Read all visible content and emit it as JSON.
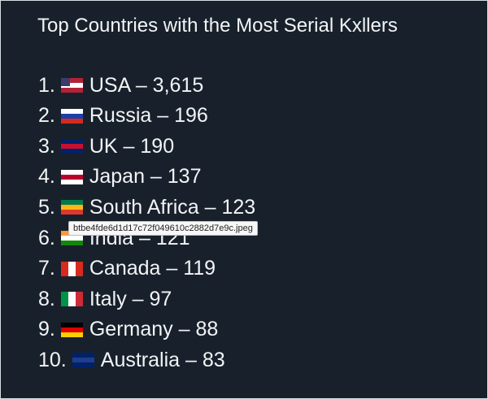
{
  "header": {
    "title": "Top Countries with the Most Serial Kxllers"
  },
  "list": [
    {
      "rank": "1.",
      "text": "USA – 3,615"
    },
    {
      "rank": "2.",
      "text": "Russia – 196"
    },
    {
      "rank": "3.",
      "text": "UK – 190"
    },
    {
      "rank": "4.",
      "text": "Japan – 137"
    },
    {
      "rank": "5.",
      "text": "South Africa – 123"
    },
    {
      "rank": "6.",
      "text": "India – 121"
    },
    {
      "rank": "7.",
      "text": "Canada – 119"
    },
    {
      "rank": "8.",
      "text": "Italy – 97"
    },
    {
      "rank": "9.",
      "text": "Germany – 88"
    },
    {
      "rank": "10.",
      "text": "Australia – 83"
    }
  ],
  "tooltip": {
    "filename": "btbe4fde6d1d17c72f049610c2882d7e9c.jpeg"
  }
}
